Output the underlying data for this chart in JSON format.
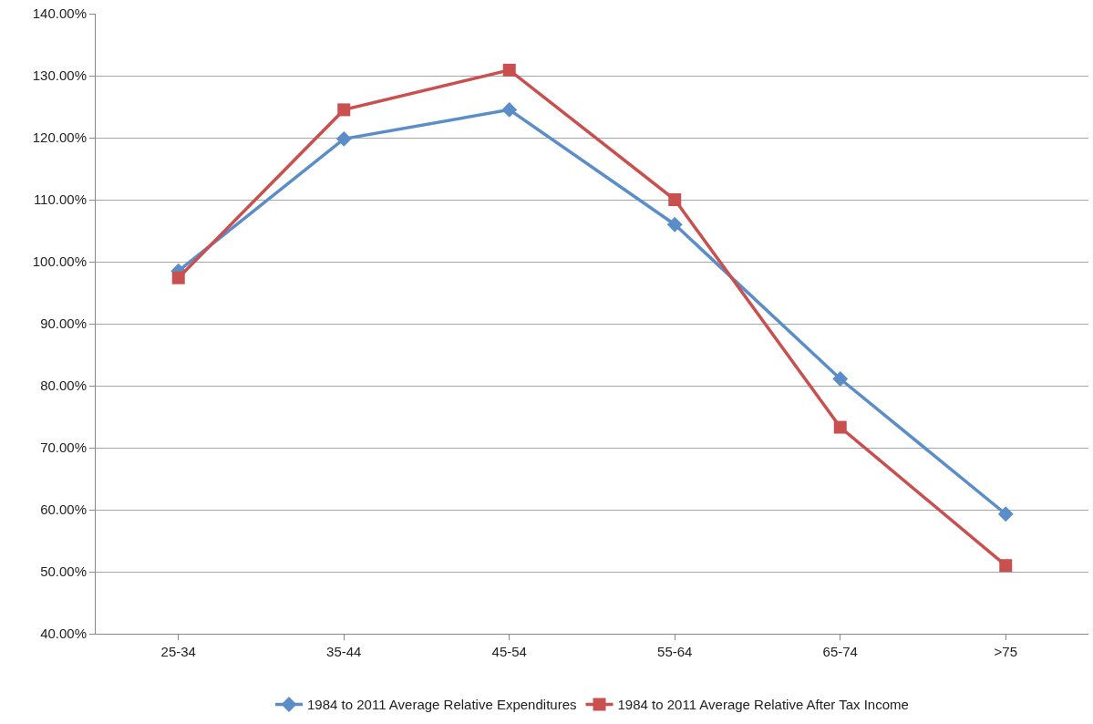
{
  "chart_data": {
    "type": "line",
    "categories": [
      "25-34",
      "35-44",
      "45-54",
      "55-64",
      "65-74",
      ">75"
    ],
    "series": [
      {
        "name": "1984 to 2011 Average Relative Expenditures",
        "color": "#5b8ec8",
        "marker": "diamond",
        "values": [
          98.5,
          119.8,
          124.5,
          106.0,
          81.1,
          59.3
        ]
      },
      {
        "name": "1984 to 2011 Average Relative After Tax Income",
        "color": "#c9504e",
        "marker": "square",
        "values": [
          97.4,
          124.5,
          130.9,
          110.0,
          73.3,
          51.0
        ]
      }
    ],
    "ylim": [
      40,
      140
    ],
    "yticks": [
      {
        "value": 40,
        "label": "40.00%"
      },
      {
        "value": 50,
        "label": "50.00%"
      },
      {
        "value": 60,
        "label": "60.00%"
      },
      {
        "value": 70,
        "label": "70.00%"
      },
      {
        "value": 80,
        "label": "80.00%"
      },
      {
        "value": 90,
        "label": "90.00%"
      },
      {
        "value": 100,
        "label": "100.00%"
      },
      {
        "value": 110,
        "label": "110.00%"
      },
      {
        "value": 120,
        "label": "120.00%"
      },
      {
        "value": 130,
        "label": "130.00%"
      },
      {
        "value": 140,
        "label": "140.00%"
      }
    ],
    "grid": "y",
    "legend": "bottom",
    "line_style": "solid"
  }
}
